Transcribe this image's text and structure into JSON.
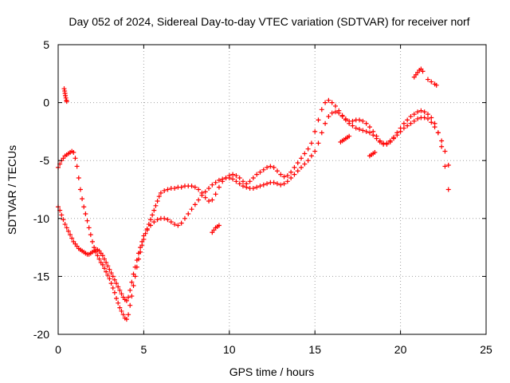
{
  "chart_data": {
    "type": "scatter",
    "title": "Day 052 of 2024, Sidereal Day-to-day VTEC variation (SDTVAR) for receiver norf",
    "xlabel": "GPS time / hours",
    "ylabel": "SDTVAR / TECUs",
    "xlim": [
      0,
      25
    ],
    "ylim": [
      -20,
      5
    ],
    "x_ticks": [
      "0",
      "5",
      "10",
      "15",
      "20",
      "25"
    ],
    "y_ticks": [
      "5",
      "0",
      "-5",
      "-10",
      "-15",
      "-20"
    ],
    "grid": true,
    "marker": "+",
    "color": "#ff0000",
    "series": [
      {
        "x": [
          0.0,
          0.1,
          0.2,
          0.3,
          0.4,
          0.5,
          0.6,
          0.7,
          0.8,
          0.9,
          1.0,
          1.1,
          1.2,
          1.3,
          1.4,
          1.5,
          1.6,
          1.7,
          1.8,
          1.9,
          2.0,
          2.1,
          2.2,
          2.3,
          2.4,
          2.5,
          2.6,
          2.7,
          2.8,
          2.9,
          3.0,
          3.1,
          3.2,
          3.3,
          3.4,
          3.5,
          3.6,
          3.7,
          3.8,
          3.9,
          4.0,
          4.1,
          4.2,
          4.3,
          4.4,
          4.5,
          4.6,
          4.7,
          4.8,
          4.9,
          5.0,
          5.1,
          5.2,
          5.3,
          5.4,
          5.5,
          5.6,
          5.7,
          5.8,
          5.9,
          6.0,
          6.2,
          6.4,
          6.6,
          6.8,
          7.0,
          7.2,
          7.4,
          7.6,
          7.8,
          8.0,
          8.2,
          8.4,
          8.6,
          8.8,
          9.0,
          9.2,
          9.4,
          9.6,
          9.8,
          10.0,
          10.2,
          10.4,
          10.6,
          10.8,
          11.0,
          11.2,
          11.4,
          11.6,
          11.8,
          12.0,
          12.2,
          12.4,
          12.6,
          12.8,
          13.0,
          13.2,
          13.4,
          13.6,
          13.8,
          14.0,
          14.2,
          14.4,
          14.6,
          14.8,
          15.0,
          15.2,
          15.4,
          15.6,
          15.8,
          16.0,
          16.2,
          16.4,
          16.6,
          16.8,
          17.0,
          17.2,
          17.4,
          17.6,
          17.8,
          18.0,
          18.2,
          18.4,
          18.6,
          18.8,
          19.0,
          19.2,
          19.4,
          19.6,
          19.8,
          20.0,
          20.2,
          20.4,
          20.6,
          20.8,
          21.0,
          21.2,
          21.4,
          21.6,
          21.8,
          22.0,
          22.2,
          22.4,
          22.6,
          22.8
        ],
        "y": [
          -5.6,
          -5.3,
          -5.0,
          -4.8,
          -4.6,
          -4.5,
          -4.4,
          -4.3,
          -4.2,
          -4.3,
          -4.8,
          -5.5,
          -6.5,
          -7.5,
          -8.3,
          -9.0,
          -9.6,
          -10.2,
          -10.8,
          -11.4,
          -12.0,
          -12.5,
          -12.9,
          -13.2,
          -13.5,
          -13.8,
          -14.0,
          -14.3,
          -14.6,
          -14.9,
          -15.2,
          -15.6,
          -16.0,
          -16.4,
          -16.9,
          -17.3,
          -17.7,
          -18.0,
          -18.3,
          -18.6,
          -18.7,
          -18.3,
          -17.5,
          -16.7,
          -15.8,
          -15.0,
          -14.2,
          -13.5,
          -12.9,
          -12.3,
          -11.8,
          -11.3,
          -10.9,
          -10.5,
          -10.1,
          -9.7,
          -9.3,
          -8.9,
          -8.5,
          -8.1,
          -7.8,
          -7.6,
          -7.5,
          -7.4,
          -7.4,
          -7.3,
          -7.3,
          -7.2,
          -7.2,
          -7.2,
          -7.3,
          -7.5,
          -7.8,
          -8.2,
          -8.5,
          -8.4,
          -7.9,
          -7.3,
          -6.8,
          -6.5,
          -6.3,
          -6.2,
          -6.3,
          -6.5,
          -6.8,
          -7.0,
          -6.8,
          -6.5,
          -6.2,
          -6.0,
          -5.8,
          -5.6,
          -5.5,
          -5.6,
          -5.9,
          -6.2,
          -6.4,
          -6.3,
          -6.0,
          -5.6,
          -5.2,
          -4.8,
          -4.4,
          -4.0,
          -3.5,
          -2.5,
          -1.5,
          -0.6,
          0.0,
          0.2,
          0.0,
          -0.3,
          -0.7,
          -1.1,
          -1.4,
          -1.6,
          -1.6,
          -1.5,
          -1.5,
          -1.6,
          -1.8,
          -2.1,
          -2.5,
          -2.9,
          -3.3,
          -3.5,
          -3.5,
          -3.3,
          -3.0,
          -2.6,
          -2.2,
          -1.8,
          -1.5,
          -1.2,
          -1.0,
          -0.8,
          -0.7,
          -0.8,
          -1.0,
          -1.3,
          -1.8,
          -2.6,
          -3.8,
          -5.5,
          -7.5
        ]
      },
      {
        "x": [
          0.0,
          0.1,
          0.2,
          0.3,
          0.4,
          0.5,
          0.6,
          0.7,
          0.8,
          0.9,
          1.0,
          1.1,
          1.2,
          1.3,
          1.4,
          1.5,
          1.6,
          1.7,
          1.8,
          1.9,
          2.0,
          2.1,
          2.2,
          2.3,
          2.4,
          2.5,
          2.6,
          2.7,
          2.8,
          2.9,
          3.0,
          3.1,
          3.2,
          3.3,
          3.4,
          3.5,
          3.6,
          3.7,
          3.8,
          3.9,
          4.0,
          4.1,
          4.2,
          4.3,
          4.4,
          4.5,
          4.6,
          4.7,
          4.8,
          4.9,
          5.0,
          5.2,
          5.4,
          5.6,
          5.8,
          6.0,
          6.2,
          6.4,
          6.6,
          6.8,
          7.0,
          7.2,
          7.4,
          7.6,
          7.8,
          8.0,
          8.2,
          8.4,
          8.6,
          8.8,
          9.0,
          9.2,
          9.4,
          9.6,
          9.8,
          10.0,
          10.2,
          10.4,
          10.6,
          10.8,
          11.0,
          11.2,
          11.4,
          11.6,
          11.8,
          12.0,
          12.2,
          12.4,
          12.6,
          12.8,
          13.0,
          13.2,
          13.4,
          13.6,
          13.8,
          14.0,
          14.2,
          14.4,
          14.6,
          14.8,
          15.0,
          15.2,
          15.4,
          15.6,
          15.8,
          16.0,
          16.2,
          16.4,
          16.6,
          16.8,
          17.0,
          17.2,
          17.4,
          17.6,
          17.8,
          18.0,
          18.2,
          18.4,
          18.6,
          18.8,
          19.0,
          19.2,
          19.4,
          19.6,
          19.8,
          20.0,
          20.2,
          20.4,
          20.6,
          20.8,
          21.0,
          21.2,
          21.4,
          21.6,
          21.8,
          22.0,
          22.2,
          22.4,
          22.6,
          22.8
        ],
        "y": [
          -9.0,
          -9.3,
          -9.7,
          -10.1,
          -10.5,
          -10.8,
          -11.1,
          -11.4,
          -11.7,
          -12.0,
          -12.2,
          -12.4,
          -12.6,
          -12.7,
          -12.8,
          -12.9,
          -13.0,
          -13.1,
          -13.1,
          -13.0,
          -12.9,
          -12.8,
          -12.7,
          -12.7,
          -12.8,
          -13.0,
          -13.2,
          -13.5,
          -13.8,
          -14.1,
          -14.4,
          -14.7,
          -15.0,
          -15.3,
          -15.6,
          -15.9,
          -16.2,
          -16.5,
          -16.8,
          -17.0,
          -17.1,
          -16.8,
          -16.2,
          -15.5,
          -14.8,
          -14.2,
          -13.6,
          -13.0,
          -12.5,
          -12.0,
          -11.5,
          -11.0,
          -10.6,
          -10.3,
          -10.1,
          -10.0,
          -10.0,
          -10.1,
          -10.3,
          -10.5,
          -10.6,
          -10.4,
          -10.0,
          -9.6,
          -9.2,
          -8.8,
          -8.4,
          -8.0,
          -7.7,
          -7.4,
          -7.1,
          -6.9,
          -6.7,
          -6.6,
          -6.5,
          -6.5,
          -6.6,
          -6.8,
          -7.0,
          -7.2,
          -7.3,
          -7.4,
          -7.4,
          -7.3,
          -7.2,
          -7.1,
          -7.0,
          -6.9,
          -6.9,
          -7.0,
          -7.1,
          -7.0,
          -6.8,
          -6.5,
          -6.2,
          -5.9,
          -5.6,
          -5.3,
          -5.0,
          -4.6,
          -4.2,
          -3.5,
          -2.6,
          -1.8,
          -1.2,
          -0.9,
          -0.8,
          -0.9,
          -1.2,
          -1.5,
          -1.8,
          -2.0,
          -2.2,
          -2.3,
          -2.4,
          -2.5,
          -2.6,
          -2.8,
          -3.1,
          -3.4,
          -3.6,
          -3.6,
          -3.4,
          -3.1,
          -2.8,
          -2.5,
          -2.2,
          -2.0,
          -1.8,
          -1.6,
          -1.4,
          -1.3,
          -1.3,
          -1.4,
          -1.7,
          -2.1,
          -2.6,
          -3.3,
          -4.2,
          -5.4
        ]
      },
      {
        "x": [
          0.35,
          0.38,
          0.4,
          0.42,
          0.45,
          0.48,
          0.5
        ],
        "y": [
          1.2,
          1.0,
          0.8,
          0.6,
          0.4,
          0.2,
          0.1
        ]
      },
      {
        "x": [
          9.0,
          9.1,
          9.2,
          9.3,
          9.4
        ],
        "y": [
          -11.2,
          -11.0,
          -10.8,
          -10.7,
          -10.6
        ]
      },
      {
        "x": [
          16.5,
          16.6,
          16.7,
          16.8,
          16.9,
          17.0
        ],
        "y": [
          -3.4,
          -3.3,
          -3.2,
          -3.1,
          -3.0,
          -2.9
        ]
      },
      {
        "x": [
          18.2,
          18.3,
          18.4,
          18.5
        ],
        "y": [
          -4.6,
          -4.5,
          -4.4,
          -4.3
        ]
      },
      {
        "x": [
          20.8,
          20.9,
          21.0,
          21.1,
          21.2,
          21.3
        ],
        "y": [
          2.2,
          2.4,
          2.6,
          2.8,
          2.9,
          2.7
        ]
      },
      {
        "x": [
          21.6,
          21.8,
          22.0,
          22.1
        ],
        "y": [
          2.0,
          1.8,
          1.6,
          1.5
        ]
      }
    ]
  }
}
